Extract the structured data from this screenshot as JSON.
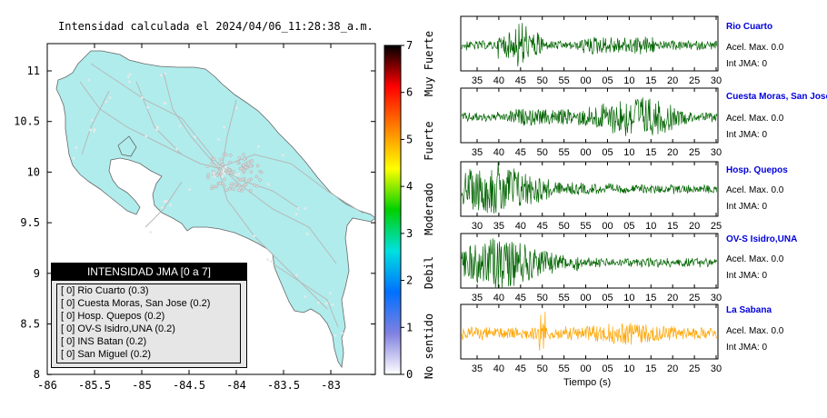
{
  "map": {
    "title": "Intensidad calculada el 2024/04/06_11:28:38_a.m.",
    "x_ticks": [
      "-86",
      "-85.5",
      "-85",
      "-84.5",
      "-84",
      "-83.5",
      "-83"
    ],
    "y_ticks": [
      "11",
      "10.5",
      "10",
      "9.5",
      "9",
      "8.5",
      "8"
    ],
    "colors": {
      "land": "#b0ecec",
      "roads": "#b8b8b8",
      "border": "#666666"
    }
  },
  "colorbar": {
    "ticks": [
      "0",
      "1",
      "2",
      "3",
      "4",
      "5",
      "6",
      "7"
    ],
    "category_labels": [
      "No sentido",
      "Debil",
      "Moderado",
      "Fuerte",
      "Muy Fuerte"
    ],
    "colors": [
      "#ffffff",
      "#8080e0",
      "#0070ff",
      "#00e0e0",
      "#00d000",
      "#ffff00",
      "#ff8000",
      "#ff0000",
      "#000000"
    ]
  },
  "legend": {
    "header": "INTENSIDAD JMA [0 a 7]",
    "items": [
      "[ 0] Rio Cuarto (0.3)",
      "[ 0] Cuesta Moras, San Jose (0.2)",
      "[ 0] Hosp. Quepos (0.2)",
      "[ 0] OV-S Isidro,UNA (0.2)",
      "[ 0] INS Batan (0.2)",
      "[ 0] San Miguel (0.2)"
    ]
  },
  "chart_data": {
    "type": "line",
    "xlabel": "Tiempo (s)",
    "series": [
      {
        "name": "Rio Cuarto",
        "accel_label": "Acel. Max. 0.0",
        "jma_label": "Int JMA: 0",
        "x_ticks": [
          "35",
          "40",
          "45",
          "50",
          "55",
          "00",
          "05",
          "10",
          "15",
          "20",
          "25",
          "30"
        ],
        "color": "#006400",
        "peak_tick": "45"
      },
      {
        "name": "Cuesta Moras, San Jose",
        "accel_label": "Acel. Max. 0.0",
        "jma_label": "Int JMA: 0",
        "x_ticks": [
          "35",
          "40",
          "45",
          "50",
          "55",
          "00",
          "05",
          "10",
          "15",
          "20",
          "25",
          "30"
        ],
        "color": "#006400",
        "peak_tick": "10"
      },
      {
        "name": "Hosp. Quepos",
        "accel_label": "Acel. Max. 0.0",
        "jma_label": "Int JMA: 0",
        "x_ticks": [
          "30",
          "35",
          "40",
          "45",
          "50",
          "55",
          "00",
          "05",
          "10",
          "15",
          "20",
          "25"
        ],
        "color": "#006400",
        "peak_tick": "35"
      },
      {
        "name": "OV-S Isidro,UNA",
        "accel_label": "Acel. Max. 0.0",
        "jma_label": "Int JMA: 0",
        "x_ticks": [
          "35",
          "40",
          "45",
          "50",
          "55",
          "00",
          "05",
          "10",
          "15",
          "20",
          "25",
          "30"
        ],
        "color": "#006400",
        "peak_tick": "40"
      },
      {
        "name": "La Sabana",
        "accel_label": "Acel. Max. 0.0",
        "jma_label": "Int JMA: 0",
        "x_ticks": [
          "35",
          "40",
          "45",
          "50",
          "55",
          "00",
          "05",
          "10",
          "15",
          "20",
          "25",
          "30"
        ],
        "color": "#ffa500",
        "peak_tick": "50"
      }
    ]
  }
}
